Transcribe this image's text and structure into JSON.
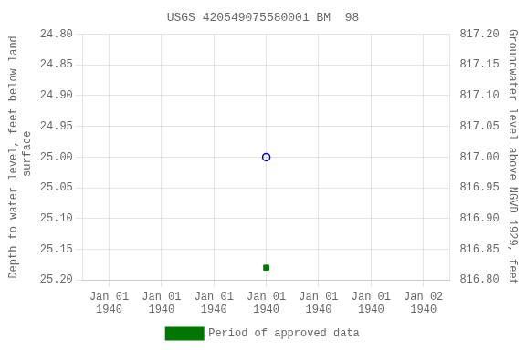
{
  "chart_data": {
    "type": "scatter",
    "title": "USGS 420549075580001 BM  98",
    "y_label": "Depth to water level, feet below land\n surface",
    "y2_label": "Groundwater level above NGVD 1929, feet",
    "categories": [
      "Jan 01\n1940",
      "Jan 01\n1940",
      "Jan 01\n1940",
      "Jan 01\n1940",
      "Jan 01\n1940",
      "Jan 01\n1940",
      "Jan 02\n1940"
    ],
    "series": [
      {
        "color": "#0000cc",
        "marker": "open_circle",
        "values": [
          null,
          null,
          null,
          25,
          null,
          null,
          null
        ]
      },
      {
        "name": "Period of approved data",
        "color": "#007700",
        "marker": "square",
        "values": [
          null,
          null,
          null,
          25.18,
          null,
          null,
          null
        ]
      }
    ],
    "ylim": [
      25.2,
      24.8
    ],
    "yticks": [
      {
        "value": 24.8,
        "label": "24.80"
      },
      {
        "value": 24.85,
        "label": "24.85"
      },
      {
        "value": 24.9,
        "label": "24.90"
      },
      {
        "value": 24.95,
        "label": "24.95"
      },
      {
        "value": 25,
        "label": "25.00"
      },
      {
        "value": 25.05,
        "label": "25.05"
      },
      {
        "value": 25.1,
        "label": "25.10"
      },
      {
        "value": 25.15,
        "label": "25.15"
      },
      {
        "value": 25.2,
        "label": "25.20"
      }
    ],
    "y2lim": [
      816.8,
      817.2
    ],
    "y2ticks": [
      {
        "value": 817.2,
        "label": "817.20"
      },
      {
        "value": 817.15,
        "label": "817.15"
      },
      {
        "value": 817.1,
        "label": "817.10"
      },
      {
        "value": 817.05,
        "label": "817.05"
      },
      {
        "value": 817,
        "label": "817.00"
      },
      {
        "value": 816.95,
        "label": "816.95"
      },
      {
        "value": 816.9,
        "label": "816.90"
      },
      {
        "value": 816.85,
        "label": "816.85"
      },
      {
        "value": 816.8,
        "label": "816.80"
      }
    ],
    "grid": true,
    "legend": "bottom"
  }
}
